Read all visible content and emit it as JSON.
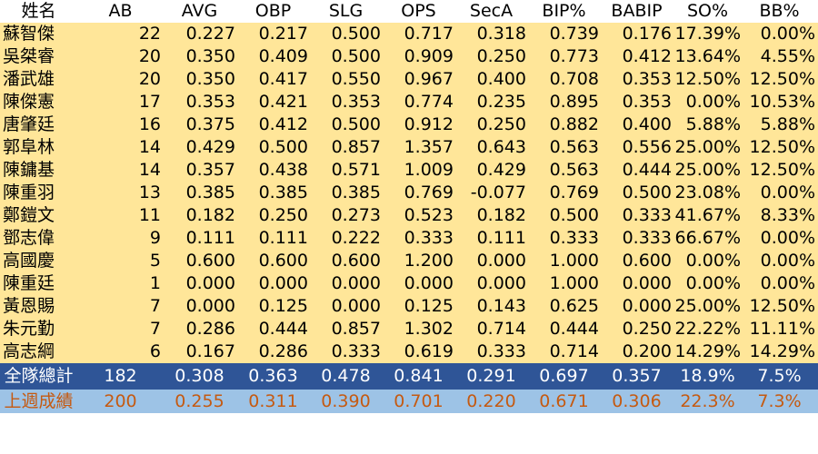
{
  "table": {
    "headers": [
      "姓名",
      "AB",
      "AVG",
      "OBP",
      "SLG",
      "OPS",
      "SecA",
      "BIP%",
      "BABIP",
      "SO%",
      "BB%"
    ],
    "rows": [
      [
        "蘇智傑",
        "22",
        "0.227",
        "0.217",
        "0.500",
        "0.717",
        "0.318",
        "0.739",
        "0.176",
        "17.39%",
        "0.00%"
      ],
      [
        "吳桀睿",
        "20",
        "0.350",
        "0.409",
        "0.500",
        "0.909",
        "0.250",
        "0.773",
        "0.412",
        "13.64%",
        "4.55%"
      ],
      [
        "潘武雄",
        "20",
        "0.350",
        "0.417",
        "0.550",
        "0.967",
        "0.400",
        "0.708",
        "0.353",
        "12.50%",
        "12.50%"
      ],
      [
        "陳傑憲",
        "17",
        "0.353",
        "0.421",
        "0.353",
        "0.774",
        "0.235",
        "0.895",
        "0.353",
        "0.00%",
        "10.53%"
      ],
      [
        "唐肇廷",
        "16",
        "0.375",
        "0.412",
        "0.500",
        "0.912",
        "0.250",
        "0.882",
        "0.400",
        "5.88%",
        "5.88%"
      ],
      [
        "郭阜林",
        "14",
        "0.429",
        "0.500",
        "0.857",
        "1.357",
        "0.643",
        "0.563",
        "0.556",
        "25.00%",
        "12.50%"
      ],
      [
        "陳鏞基",
        "14",
        "0.357",
        "0.438",
        "0.571",
        "1.009",
        "0.429",
        "0.563",
        "0.444",
        "25.00%",
        "12.50%"
      ],
      [
        "陳重羽",
        "13",
        "0.385",
        "0.385",
        "0.385",
        "0.769",
        "-0.077",
        "0.769",
        "0.500",
        "23.08%",
        "0.00%"
      ],
      [
        "鄭鎧文",
        "11",
        "0.182",
        "0.250",
        "0.273",
        "0.523",
        "0.182",
        "0.500",
        "0.333",
        "41.67%",
        "8.33%"
      ],
      [
        "鄧志偉",
        "9",
        "0.111",
        "0.111",
        "0.222",
        "0.333",
        "0.111",
        "0.333",
        "0.333",
        "66.67%",
        "0.00%"
      ],
      [
        "高國慶",
        "5",
        "0.600",
        "0.600",
        "0.600",
        "1.200",
        "0.000",
        "1.000",
        "0.600",
        "0.00%",
        "0.00%"
      ],
      [
        "陳重廷",
        "1",
        "0.000",
        "0.000",
        "0.000",
        "0.000",
        "0.000",
        "1.000",
        "0.000",
        "0.00%",
        "0.00%"
      ],
      [
        "黃恩賜",
        "7",
        "0.000",
        "0.125",
        "0.000",
        "0.125",
        "0.143",
        "0.625",
        "0.000",
        "25.00%",
        "12.50%"
      ],
      [
        "朱元勤",
        "7",
        "0.286",
        "0.444",
        "0.857",
        "1.302",
        "0.714",
        "0.444",
        "0.250",
        "22.22%",
        "11.11%"
      ],
      [
        "高志綱",
        "6",
        "0.167",
        "0.286",
        "0.333",
        "0.619",
        "0.333",
        "0.714",
        "0.200",
        "14.29%",
        "14.29%"
      ]
    ],
    "total": [
      "全隊總計",
      "182",
      "0.308",
      "0.363",
      "0.478",
      "0.841",
      "0.291",
      "0.697",
      "0.357",
      "18.9%",
      "7.5%"
    ],
    "previous": [
      "上週成績",
      "200",
      "0.255",
      "0.311",
      "0.390",
      "0.701",
      "0.220",
      "0.671",
      "0.306",
      "22.3%",
      "7.3%"
    ]
  },
  "colors": {
    "body_rows": "#ffe699",
    "total_row": "#2f5597",
    "total_text": "#ffffff",
    "previous_row": "#9dc3e6",
    "previous_text": "#c55a11"
  }
}
